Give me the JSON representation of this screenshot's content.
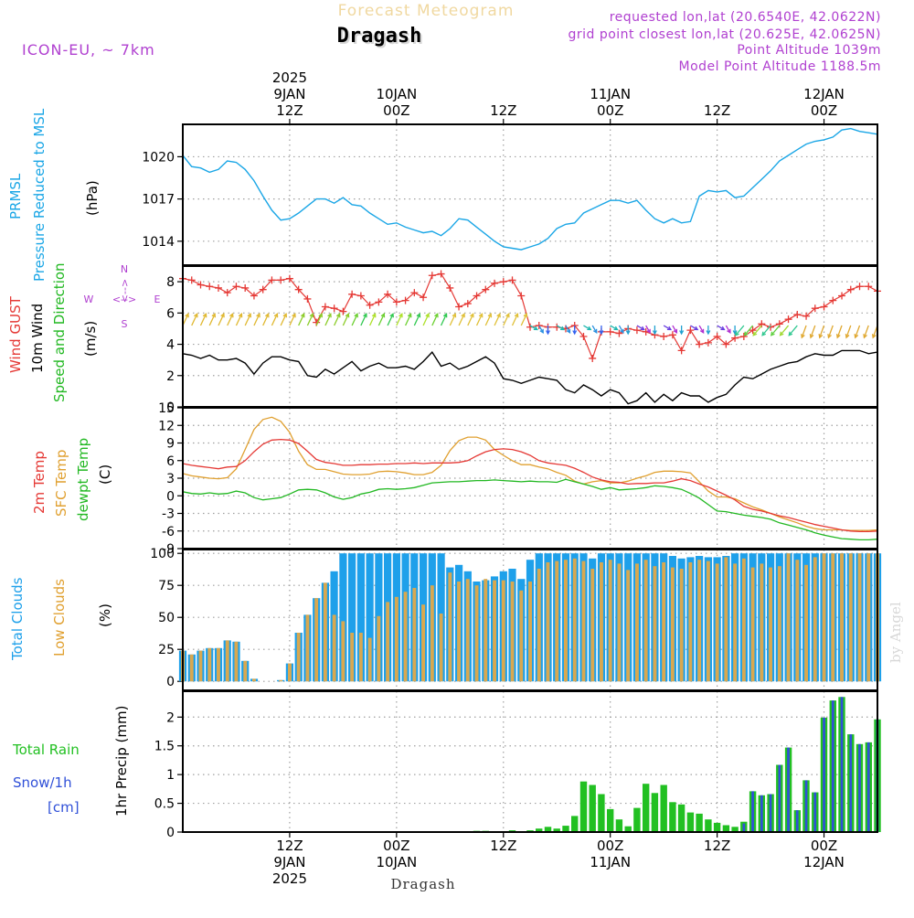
{
  "header": {
    "subtitle": "Forecast Meteogram",
    "location": "Dragash",
    "model": "ICON-EU, ~ 7km",
    "requested": "requested lon,lat (20.6540E, 42.0622N)",
    "grid_point": "grid point closest lon,lat (20.625E, 42.0625N)",
    "point_alt": "Point Altitude 1039m",
    "model_alt": "Model Point Altitude 1188.5m",
    "footer_location": "Dragash",
    "watermark": "by Angel",
    "compass": {
      "n": "N",
      "s": "S",
      "e": "E",
      "w": "W",
      "ns_arrow": "<-->",
      "ew_arrow": "<-->"
    }
  },
  "colors": {
    "pressure": "#1aa6e6",
    "gust": "#e53935",
    "wind": "#000000",
    "direction": "#22b822",
    "temp": "#e53935",
    "sfc": "#e0a030",
    "dewpt": "#22b822",
    "total_clouds": "#1ea0ea",
    "low_clouds": "#d8a850",
    "rain": "#22c022",
    "snow": "#3050d8",
    "labels_purple": "#b040d0"
  },
  "chart_data": [
    {
      "type": "line",
      "title": "PRMSL Pressure Reduced to MSL",
      "ylabel_lines": [
        "PRMSL",
        "Pressure Reduced to MSL"
      ],
      "unit": "(hPa)",
      "ylim": [
        1012.3,
        1022.3
      ],
      "yticks": [
        1014,
        1017,
        1020
      ],
      "x_hours": [
        0,
        1,
        2,
        3,
        4,
        5,
        6,
        7,
        8,
        9,
        10,
        11,
        12,
        13,
        14,
        15,
        16,
        17,
        18,
        19,
        20,
        21,
        22,
        23,
        24,
        25,
        26,
        27,
        28,
        29,
        30,
        31,
        32,
        33,
        34,
        35,
        36,
        37,
        38,
        39,
        40,
        41,
        42,
        43,
        44,
        45,
        46,
        47,
        48,
        49,
        50,
        51,
        52,
        53,
        54,
        55,
        56,
        57,
        58,
        59,
        60,
        61,
        62,
        63,
        64,
        65,
        66,
        67,
        68,
        69,
        70,
        71,
        72,
        73,
        74,
        75,
        76,
        77,
        78
      ],
      "series": [
        {
          "name": "PRMSL",
          "values": [
            1020.1,
            1019.3,
            1019.2,
            1018.9,
            1019.1,
            1019.7,
            1019.6,
            1019.1,
            1018.3,
            1017.2,
            1016.2,
            1015.5,
            1015.6,
            1016.0,
            1016.5,
            1017.0,
            1017.0,
            1016.7,
            1017.1,
            1016.6,
            1016.5,
            1016.0,
            1015.6,
            1015.2,
            1015.3,
            1015.0,
            1014.8,
            1014.6,
            1014.7,
            1014.4,
            1014.9,
            1015.6,
            1015.5,
            1015.0,
            1014.5,
            1014.0,
            1013.6,
            1013.5,
            1013.4,
            1013.6,
            1013.8,
            1014.2,
            1014.9,
            1015.2,
            1015.3,
            1016.0,
            1016.3,
            1016.6,
            1016.9,
            1016.9,
            1016.7,
            1016.9,
            1016.2,
            1015.6,
            1015.3,
            1015.6,
            1015.3,
            1015.4,
            1017.2,
            1017.6,
            1017.5,
            1017.6,
            1017.1,
            1017.2,
            1017.8,
            1018.4,
            1019.0,
            1019.7,
            1020.1,
            1020.5,
            1020.9,
            1021.1,
            1021.2,
            1021.4,
            1021.9,
            1022.0,
            1021.8,
            1021.7,
            1021.6
          ]
        }
      ]
    },
    {
      "type": "line",
      "title": "Wind GUST / 10m Wind / Speed and Direction",
      "ylabel_lines": [
        "Wind GUST",
        "10m Wind",
        "Speed and Direction"
      ],
      "unit": "(m/s)",
      "ylim": [
        0,
        9
      ],
      "yticks": [
        0,
        2,
        4,
        6,
        8
      ],
      "series": [
        {
          "name": "Wind GUST",
          "values": [
            8.2,
            8.1,
            7.8,
            7.7,
            7.6,
            7.3,
            7.7,
            7.6,
            7.1,
            7.5,
            8.1,
            8.1,
            8.2,
            7.5,
            6.9,
            5.4,
            6.4,
            6.3,
            6.1,
            7.2,
            7.1,
            6.5,
            6.7,
            7.2,
            6.7,
            6.8,
            7.3,
            7.0,
            8.4,
            8.5,
            7.6,
            6.4,
            6.6,
            7.1,
            7.5,
            7.9,
            8.0,
            8.1,
            7.1,
            5.1,
            5.2,
            5.1,
            5.1,
            5.0,
            5.2,
            4.5,
            3.1,
            4.8,
            4.8,
            4.7,
            5.0,
            4.9,
            4.8,
            4.6,
            4.5,
            4.6,
            3.6,
            4.9,
            4.0,
            4.1,
            4.5,
            4.0,
            4.4,
            4.5,
            4.9,
            5.3,
            5.1,
            5.3,
            5.6,
            5.9,
            5.8,
            6.3,
            6.4,
            6.8,
            7.1,
            7.5,
            7.7,
            7.7,
            7.4
          ]
        },
        {
          "name": "10m Wind",
          "values": [
            3.4,
            3.3,
            3.1,
            3.3,
            3.0,
            3.0,
            3.1,
            2.8,
            2.1,
            2.8,
            3.2,
            3.2,
            3.0,
            2.9,
            2.0,
            1.9,
            2.4,
            2.1,
            2.5,
            2.9,
            2.3,
            2.6,
            2.8,
            2.5,
            2.5,
            2.6,
            2.4,
            2.9,
            3.5,
            2.6,
            2.8,
            2.4,
            2.6,
            2.9,
            3.2,
            2.8,
            1.8,
            1.7,
            1.5,
            1.7,
            1.9,
            1.8,
            1.7,
            1.1,
            0.9,
            1.4,
            1.1,
            0.7,
            1.1,
            0.9,
            0.2,
            0.4,
            0.9,
            0.3,
            0.8,
            0.4,
            0.9,
            0.7,
            0.7,
            0.3,
            0.6,
            0.8,
            1.4,
            1.9,
            1.8,
            2.1,
            2.4,
            2.6,
            2.8,
            2.9,
            3.2,
            3.4,
            3.3,
            3.3,
            3.6,
            3.6,
            3.6,
            3.4,
            3.5
          ]
        }
      ],
      "direction_row_level": 5.2
    },
    {
      "type": "line",
      "title": "2m Temp / SFC Temp / dewpt Temp",
      "ylabel_lines": [
        "2m Temp",
        "SFC Temp",
        "dewpt Temp"
      ],
      "unit": "(C)",
      "ylim": [
        -9,
        15
      ],
      "yticks": [
        -9,
        -6,
        -3,
        0,
        3,
        6,
        9,
        12,
        15
      ],
      "series": [
        {
          "name": "2m Temp",
          "values": [
            5.5,
            5.2,
            5.0,
            4.8,
            4.6,
            4.9,
            5.0,
            6.0,
            7.5,
            8.8,
            9.5,
            9.6,
            9.5,
            8.9,
            7.6,
            6.2,
            5.7,
            5.5,
            5.2,
            5.2,
            5.3,
            5.3,
            5.4,
            5.4,
            5.5,
            5.5,
            5.6,
            5.5,
            5.6,
            5.6,
            5.6,
            5.7,
            6.0,
            6.8,
            7.5,
            7.9,
            8.0,
            7.9,
            7.5,
            6.9,
            6.0,
            5.6,
            5.4,
            5.2,
            4.7,
            4.0,
            3.2,
            2.7,
            2.4,
            2.3,
            2.0,
            2.1,
            2.1,
            2.2,
            2.2,
            2.5,
            2.9,
            2.6,
            2.0,
            1.5,
            0.8,
            0.1,
            -0.7,
            -1.8,
            -2.3,
            -2.6,
            -3.0,
            -3.4,
            -3.7,
            -4.1,
            -4.5,
            -4.9,
            -5.2,
            -5.5,
            -5.8,
            -6.0,
            -6.1,
            -6.1,
            -6.0
          ]
        },
        {
          "name": "SFC Temp",
          "values": [
            3.8,
            3.4,
            3.2,
            3.0,
            2.9,
            3.1,
            4.6,
            7.9,
            11.3,
            13.0,
            13.4,
            12.7,
            10.8,
            7.6,
            5.3,
            4.5,
            4.5,
            4.1,
            3.7,
            3.6,
            3.6,
            3.7,
            4.1,
            4.2,
            4.1,
            3.9,
            3.6,
            3.6,
            4.0,
            5.2,
            7.7,
            9.4,
            10.0,
            10.0,
            9.5,
            7.9,
            6.9,
            6.0,
            5.3,
            5.3,
            4.9,
            4.6,
            4.0,
            3.5,
            2.5,
            2.0,
            2.4,
            2.6,
            2.2,
            2.2,
            2.5,
            3.0,
            3.4,
            4.0,
            4.2,
            4.2,
            4.1,
            3.9,
            2.4,
            0.8,
            -0.2,
            -0.2,
            -0.5,
            -1.2,
            -1.9,
            -2.4,
            -3.0,
            -3.6,
            -4.1,
            -4.6,
            -5.2,
            -5.6,
            -5.8,
            -5.8,
            -5.8,
            -5.9,
            -5.9,
            -5.9,
            -5.8
          ]
        },
        {
          "name": "dewpt Temp",
          "values": [
            0.7,
            0.4,
            0.3,
            0.5,
            0.3,
            0.4,
            0.8,
            0.5,
            -0.3,
            -0.7,
            -0.5,
            -0.3,
            0.3,
            1.0,
            1.1,
            1.0,
            0.5,
            -0.2,
            -0.6,
            -0.3,
            0.3,
            0.6,
            1.1,
            1.2,
            1.1,
            1.2,
            1.4,
            1.8,
            2.2,
            2.3,
            2.4,
            2.4,
            2.5,
            2.6,
            2.6,
            2.7,
            2.6,
            2.5,
            2.4,
            2.5,
            2.4,
            2.4,
            2.3,
            2.8,
            2.4,
            2.0,
            1.6,
            1.1,
            1.4,
            1.0,
            1.1,
            1.2,
            1.4,
            1.7,
            1.6,
            1.4,
            1.1,
            0.4,
            -0.4,
            -1.5,
            -2.6,
            -2.7,
            -3.0,
            -3.3,
            -3.5,
            -3.7,
            -4.0,
            -4.6,
            -5.0,
            -5.4,
            -5.8,
            -6.3,
            -6.7,
            -7.0,
            -7.3,
            -7.4,
            -7.5,
            -7.5,
            -7.4
          ]
        }
      ]
    },
    {
      "type": "bar",
      "title": "Total Clouds / Low Clouds",
      "ylabel_lines": [
        "Total Clouds",
        "Low Clouds"
      ],
      "unit": "(%)",
      "ylim": [
        -7,
        103
      ],
      "yticks": [
        0,
        25,
        50,
        75,
        100
      ],
      "series": [
        {
          "name": "Total Clouds",
          "values": [
            24,
            21,
            24,
            26,
            26,
            32,
            31,
            16,
            2,
            0,
            0,
            1,
            14,
            38,
            52,
            65,
            77,
            86,
            100,
            100,
            100,
            100,
            100,
            100,
            100,
            100,
            100,
            100,
            100,
            100,
            89,
            91,
            86,
            78,
            79,
            82,
            86,
            88,
            80,
            95,
            100,
            100,
            100,
            100,
            100,
            100,
            96,
            100,
            100,
            100,
            100,
            100,
            100,
            100,
            100,
            98,
            96,
            97,
            98,
            97,
            97,
            98,
            100,
            100,
            100,
            100,
            100,
            100,
            100,
            100,
            100,
            100,
            100,
            100,
            100,
            100,
            100,
            100,
            100
          ]
        },
        {
          "name": "Low Clouds",
          "values": [
            24,
            21,
            24,
            26,
            26,
            32,
            31,
            16,
            2,
            0,
            0,
            1,
            14,
            38,
            52,
            65,
            77,
            52,
            47,
            38,
            38,
            34,
            51,
            62,
            66,
            70,
            73,
            60,
            75,
            53,
            85,
            78,
            80,
            75,
            80,
            79,
            79,
            78,
            71,
            78,
            88,
            93,
            94,
            95,
            96,
            94,
            88,
            93,
            95,
            92,
            87,
            92,
            95,
            90,
            93,
            89,
            88,
            93,
            95,
            94,
            92,
            97,
            92,
            96,
            89,
            92,
            89,
            90,
            100,
            95,
            91,
            97,
            100,
            100,
            100,
            100,
            100,
            100,
            100
          ]
        }
      ]
    },
    {
      "type": "bar",
      "title": "1hr Precip (mm)",
      "ylabel_lines": [
        "1hr Precip (mm)"
      ],
      "ylim": [
        0,
        2.45
      ],
      "yticks": [
        0,
        0.5,
        1,
        1.5,
        2
      ],
      "ytick_labels": [
        "0",
        "0.5",
        "1",
        "1.5",
        "2"
      ],
      "left_legend": {
        "rain": "Total  Rain",
        "snow": "Snow/1h",
        "snow_unit": "[cm]"
      },
      "series": [
        {
          "name": "Total Rain",
          "values": [
            0,
            0,
            0,
            0,
            0,
            0,
            0,
            0,
            0,
            0,
            0,
            0,
            0,
            0,
            0,
            0,
            0,
            0,
            0,
            0,
            0,
            0,
            0,
            0,
            0,
            0,
            0,
            0,
            0.01,
            0,
            0.01,
            0,
            0.01,
            0.02,
            0.02,
            0,
            0,
            0.03,
            0.01,
            0.03,
            0.06,
            0.09,
            0.06,
            0.11,
            0.28,
            0.88,
            0.82,
            0.66,
            0.4,
            0.22,
            0.1,
            0.42,
            0.84,
            0.68,
            0.82,
            0.52,
            0.48,
            0.34,
            0.32,
            0.22,
            0.16,
            0.12,
            0.09,
            0.18,
            0.71,
            0.64,
            0.66,
            1.17,
            1.47,
            0.38,
            0.9,
            0.69,
            1.99,
            2.29,
            2.35,
            1.7,
            1.53,
            1.56,
            1.96
          ]
        },
        {
          "name": "Snow/1h",
          "values": [
            0,
            0,
            0,
            0,
            0,
            0,
            0,
            0,
            0,
            0,
            0,
            0,
            0,
            0,
            0,
            0,
            0,
            0,
            0,
            0,
            0,
            0,
            0,
            0,
            0,
            0,
            0,
            0,
            0,
            0,
            0,
            0,
            0,
            0,
            0,
            0,
            0,
            0,
            0,
            0,
            0,
            0,
            0,
            0,
            0,
            0,
            0,
            0,
            0,
            0,
            0,
            0,
            0,
            0,
            0,
            0,
            0,
            0,
            0,
            0,
            0,
            0,
            0,
            0.15,
            0.71,
            0.64,
            0.66,
            1.17,
            1.47,
            0.38,
            0.9,
            0.69,
            1.99,
            2.29,
            2.35,
            1.7,
            1.53,
            1.56,
            1.96
          ]
        }
      ]
    }
  ],
  "time_axis": {
    "top": [
      {
        "hour": 12,
        "lines": [
          "2025",
          "9JAN",
          "12Z"
        ]
      },
      {
        "hour": 24,
        "lines": [
          "10JAN",
          "00Z"
        ]
      },
      {
        "hour": 36,
        "lines": [
          "12Z"
        ]
      },
      {
        "hour": 48,
        "lines": [
          "11JAN",
          "00Z"
        ]
      },
      {
        "hour": 60,
        "lines": [
          "12Z"
        ]
      },
      {
        "hour": 72,
        "lines": [
          "12JAN",
          "00Z"
        ]
      }
    ],
    "bottom": [
      {
        "hour": 12,
        "lines": [
          "12Z",
          "9JAN",
          "2025"
        ]
      },
      {
        "hour": 24,
        "lines": [
          "00Z",
          "10JAN"
        ]
      },
      {
        "hour": 36,
        "lines": [
          "12Z"
        ]
      },
      {
        "hour": 48,
        "lines": [
          "00Z",
          "11JAN"
        ]
      },
      {
        "hour": 60,
        "lines": [
          "12Z"
        ]
      },
      {
        "hour": 72,
        "lines": [
          "00Z",
          "12JAN"
        ]
      }
    ]
  }
}
